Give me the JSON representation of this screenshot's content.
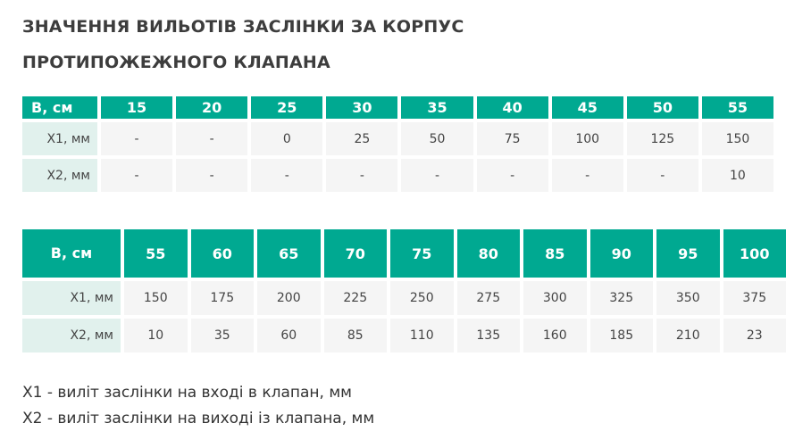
{
  "title": "ЗНАЧЕННЯ ВИЛЬОТІВ ЗАСЛІНКИ ЗА КОРПУС ПРОТИПОЖЕЖНОГО КЛАПАНА",
  "table1": {
    "header": "B, см",
    "b": [
      "15",
      "20",
      "25",
      "30",
      "35",
      "40",
      "45",
      "50",
      "55"
    ],
    "rows": [
      {
        "label": "X1, мм",
        "values": [
          "-",
          "-",
          "0",
          "25",
          "50",
          "75",
          "100",
          "125",
          "150"
        ]
      },
      {
        "label": "X2, мм",
        "values": [
          "-",
          "-",
          "-",
          "-",
          "-",
          "-",
          "-",
          "-",
          "10"
        ]
      }
    ]
  },
  "table2": {
    "header": "B, см",
    "b": [
      "55",
      "60",
      "65",
      "70",
      "75",
      "80",
      "85",
      "90",
      "95",
      "100"
    ],
    "rows": [
      {
        "label": "X1, мм",
        "values": [
          "150",
          "175",
          "200",
          "225",
          "250",
          "275",
          "300",
          "325",
          "350",
          "375"
        ]
      },
      {
        "label": "X2, мм",
        "values": [
          "10",
          "35",
          "60",
          "85",
          "110",
          "135",
          "160",
          "185",
          "210",
          "23"
        ]
      }
    ]
  },
  "notes": [
    "X1 - виліт заслінки на вході в клапан, мм",
    "X2 - виліт заслінки на виході із клапана, мм"
  ],
  "colors": {
    "header": "#00a991",
    "label_cell": "#e1f1ed",
    "cell": "#f5f5f5"
  }
}
